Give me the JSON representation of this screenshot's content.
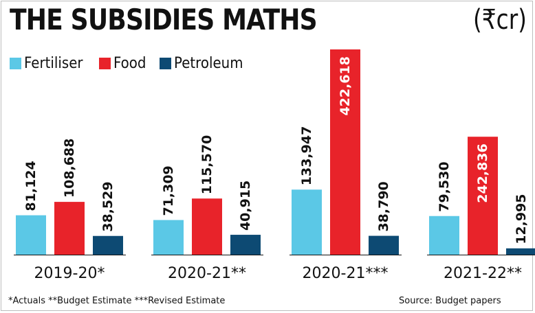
{
  "title": "THE SUBSIDIES MATHS",
  "unit": "(₹cr)",
  "legend": {
    "fertiliser": "Fertiliser",
    "food": "Food",
    "petroleum": "Petroleum"
  },
  "footnote": "*Actuals  **Budget Estimate  ***Revised Estimate",
  "source": "Source: Budget papers",
  "colors": {
    "fertiliser": "#5bc8e6",
    "food": "#e8232a",
    "petroleum": "#0d4a73"
  },
  "chart_data": {
    "type": "bar",
    "categories": [
      "2019-20*",
      "2020-21**",
      "2020-21***",
      "2021-22**"
    ],
    "series": [
      {
        "name": "Fertiliser",
        "values": [
          81124,
          71309,
          133947,
          79530
        ],
        "labels": [
          "81,124",
          "71,309",
          "133,947",
          "79,530"
        ]
      },
      {
        "name": "Food",
        "values": [
          108688,
          115570,
          422618,
          242836
        ],
        "labels": [
          "108,688",
          "115,570",
          "422,618",
          "242,836"
        ]
      },
      {
        "name": "Petroleum",
        "values": [
          38529,
          40915,
          38790,
          12995
        ],
        "labels": [
          "38,529",
          "40,915",
          "38,790",
          "12,995"
        ]
      }
    ],
    "ylim": [
      0,
      422618
    ],
    "xlabel": "",
    "ylabel": "",
    "grid": false,
    "legend_position": "top-left"
  }
}
